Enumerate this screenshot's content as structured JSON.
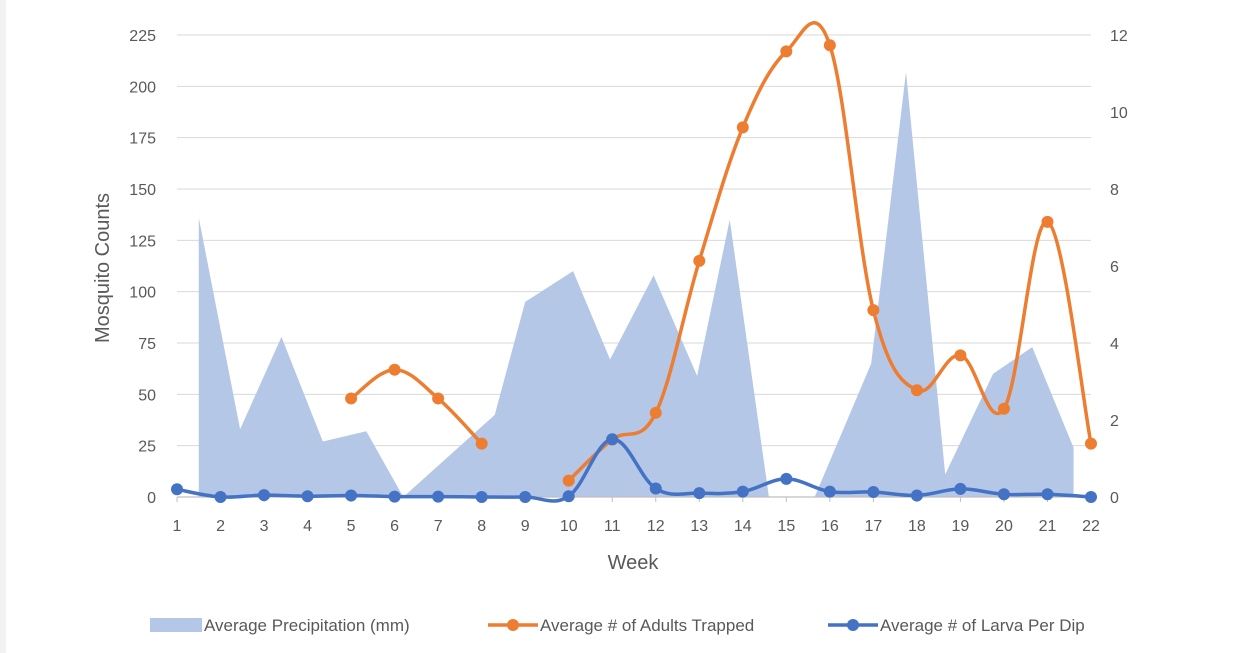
{
  "chart_data": {
    "type": "line",
    "xlabel": "Week",
    "ylabel": "Mosquito Counts",
    "x": [
      1,
      2,
      3,
      4,
      5,
      6,
      7,
      8,
      9,
      10,
      11,
      12,
      13,
      14,
      15,
      16,
      17,
      18,
      19,
      20,
      21,
      22
    ],
    "x_tick_labels": [
      "1",
      "2",
      "3",
      "4",
      "5",
      "6",
      "7",
      "8",
      "9",
      "10",
      "11",
      "12",
      "13",
      "14",
      "15",
      "16",
      "17",
      "18",
      "19",
      "20",
      "21",
      "22"
    ],
    "y_left": {
      "min": 0,
      "max": 225,
      "ticks": [
        0,
        25,
        50,
        75,
        100,
        125,
        150,
        175,
        200,
        225
      ]
    },
    "y_right": {
      "min": 0,
      "max": 12,
      "ticks": [
        0,
        2,
        4,
        6,
        8,
        10,
        12
      ]
    },
    "grid": "horizontal",
    "legend_position": "bottom",
    "series": [
      {
        "name": "Average Precipitation (mm)",
        "kind": "area",
        "axis": "left",
        "color": "#b4c7e7",
        "points": [
          [
            1.5,
            0
          ],
          [
            1.5,
            136
          ],
          [
            2.45,
            33
          ],
          [
            3.4,
            78
          ],
          [
            4.35,
            27
          ],
          [
            5.35,
            32
          ],
          [
            6.2,
            0
          ],
          [
            8.3,
            40
          ],
          [
            9.0,
            95
          ],
          [
            10.1,
            110
          ],
          [
            10.95,
            67
          ],
          [
            11.95,
            108
          ],
          [
            12.95,
            59
          ],
          [
            13.7,
            135
          ],
          [
            14.6,
            0
          ],
          [
            15.65,
            0
          ],
          [
            16.95,
            65
          ],
          [
            17.75,
            207
          ],
          [
            18.65,
            11
          ],
          [
            19.75,
            60
          ],
          [
            20.65,
            73
          ],
          [
            21.6,
            24
          ],
          [
            21.6,
            0
          ]
        ]
      },
      {
        "name": "Average # of Adults Trapped",
        "kind": "smooth-line",
        "axis": "left",
        "color": "#ed7d31",
        "segments": [
          [
            [
              5,
              48
            ],
            [
              6,
              62
            ],
            [
              7,
              48
            ],
            [
              8,
              26
            ]
          ],
          [
            [
              10,
              8
            ],
            [
              11,
              28
            ],
            [
              12,
              41
            ],
            [
              13,
              115
            ],
            [
              14,
              180
            ],
            [
              15,
              217
            ],
            [
              16,
              220
            ],
            [
              17,
              91
            ],
            [
              18,
              52
            ],
            [
              19,
              69
            ],
            [
              20,
              43
            ],
            [
              21,
              134
            ],
            [
              22,
              26
            ]
          ]
        ]
      },
      {
        "name": "Average # of Larva Per Dip",
        "kind": "smooth-line",
        "axis": "right",
        "color": "#4472c4",
        "segments": [
          [
            [
              1,
              0.2
            ],
            [
              2,
              0.0
            ],
            [
              3,
              0.05
            ],
            [
              4,
              0.02
            ],
            [
              5,
              0.04
            ],
            [
              6,
              0.01
            ],
            [
              7,
              0.01
            ],
            [
              8,
              0.0
            ],
            [
              9,
              0.0
            ],
            [
              10,
              0.02
            ],
            [
              11,
              1.5
            ],
            [
              12,
              0.22
            ],
            [
              13,
              0.1
            ],
            [
              14,
              0.14
            ],
            [
              15,
              0.47
            ],
            [
              16,
              0.14
            ],
            [
              17,
              0.13
            ],
            [
              18,
              0.04
            ],
            [
              19,
              0.21
            ],
            [
              20,
              0.07
            ],
            [
              21,
              0.07
            ],
            [
              22,
              0.0
            ]
          ]
        ]
      }
    ]
  }
}
